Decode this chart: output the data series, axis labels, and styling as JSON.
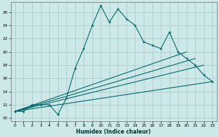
{
  "xlabel": "Humidex (Indice chaleur)",
  "background_color": "#cce8e8",
  "grid_color": "#aacccc",
  "line_color": "#006666",
  "xlim": [
    -0.5,
    23.5
  ],
  "ylim": [
    9.5,
    27.5
  ],
  "x_ticks": [
    0,
    1,
    2,
    3,
    4,
    5,
    6,
    7,
    8,
    9,
    10,
    11,
    12,
    13,
    14,
    15,
    16,
    17,
    18,
    19,
    20,
    21,
    22,
    23
  ],
  "y_ticks": [
    10,
    12,
    14,
    16,
    18,
    20,
    22,
    24,
    26
  ],
  "series1_x": [
    0,
    1,
    2,
    3,
    4,
    5,
    6,
    7,
    8,
    9,
    10,
    11,
    12,
    13,
    14,
    15,
    16,
    17,
    18,
    19,
    20,
    21,
    22,
    23
  ],
  "series1_y": [
    11,
    11,
    12,
    12,
    12,
    10.5,
    13,
    17.5,
    20.5,
    24,
    27,
    24.5,
    26.5,
    25,
    24,
    21.5,
    21,
    20.5,
    23,
    20,
    19,
    18,
    16.5,
    15.5
  ],
  "series2_x": [
    0,
    20
  ],
  "series2_y": [
    11,
    20
  ],
  "series3_x": [
    0,
    21
  ],
  "series3_y": [
    11,
    19
  ],
  "series4_x": [
    0,
    22
  ],
  "series4_y": [
    11,
    18
  ],
  "series5_x": [
    0,
    23
  ],
  "series5_y": [
    11,
    15.5
  ]
}
